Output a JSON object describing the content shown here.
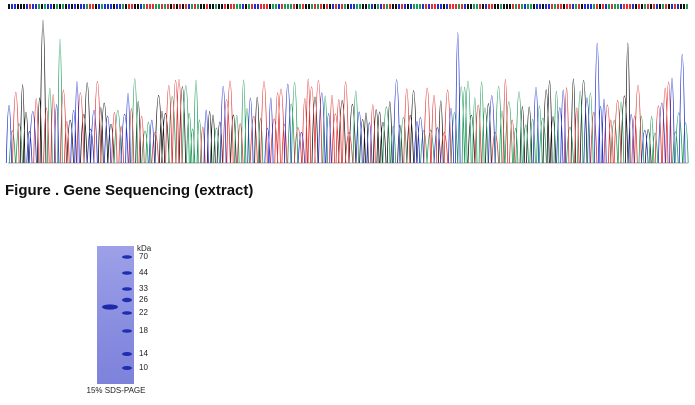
{
  "figure_caption": "Figure . Gene Sequencing (extract)",
  "gel": {
    "unit": "kDa",
    "markers": [
      "70",
      "44",
      "33",
      "26",
      "22",
      "18",
      "14",
      "10"
    ],
    "caption": "15% SDS-PAGE"
  }
}
